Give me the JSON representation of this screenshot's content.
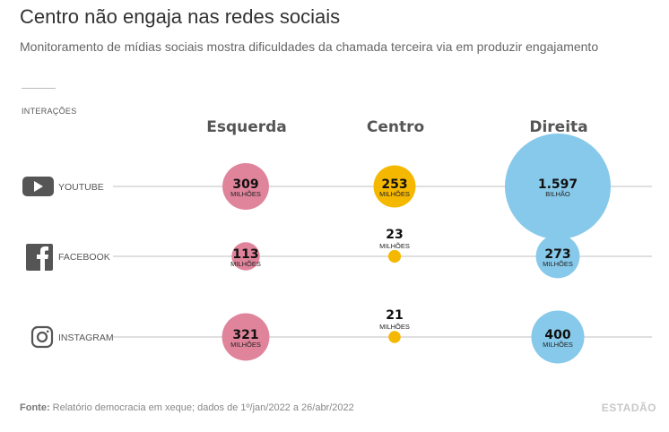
{
  "header": {
    "title": "Centro não engaja nas redes sociais",
    "subtitle": "Monitoramento de mídias sociais mostra dificuldades da chamada terceira via em produzir engajamento"
  },
  "section_label": "INTERAÇÕES",
  "footer": {
    "source_label": "Fonte:",
    "source_text": "Relatório democracia em xeque; dados de 1º/jan/2022 a 26/abr/2022",
    "brand": "ESTADÃO"
  },
  "colors": {
    "Esquerda": "#e0849b",
    "Centro": "#f5b800",
    "Direita": "#87c9ea",
    "line": "#cccccc",
    "icon": "#555555"
  },
  "chart_data": {
    "type": "bubble",
    "title": "Centro não engaja nas redes sociais",
    "columns": [
      "Esquerda",
      "Centro",
      "Direita"
    ],
    "rows": [
      {
        "network": "YOUTUBE",
        "icon": "youtube-icon"
      },
      {
        "network": "FACEBOOK",
        "icon": "facebook-icon"
      },
      {
        "network": "INSTAGRAM",
        "icon": "instagram-icon"
      }
    ],
    "unit": "milhões de interações",
    "values": [
      [
        309,
        253,
        1597
      ],
      [
        113,
        23,
        273
      ],
      [
        321,
        21,
        400
      ]
    ],
    "labels": [
      [
        {
          "value": "309",
          "unit": "MILHÕES"
        },
        {
          "value": "253",
          "unit": "MILHÕES"
        },
        {
          "value": "1.597",
          "unit": "BILHÃO"
        }
      ],
      [
        {
          "value": "113",
          "unit": "MILHÕES"
        },
        {
          "value": "23",
          "unit": "MILHÕES"
        },
        {
          "value": "273",
          "unit": "MILHÕES"
        }
      ],
      [
        {
          "value": "321",
          "unit": "MILHÕES"
        },
        {
          "value": "21",
          "unit": "MILHÕES"
        },
        {
          "value": "400",
          "unit": "MILHÕES"
        }
      ]
    ]
  }
}
